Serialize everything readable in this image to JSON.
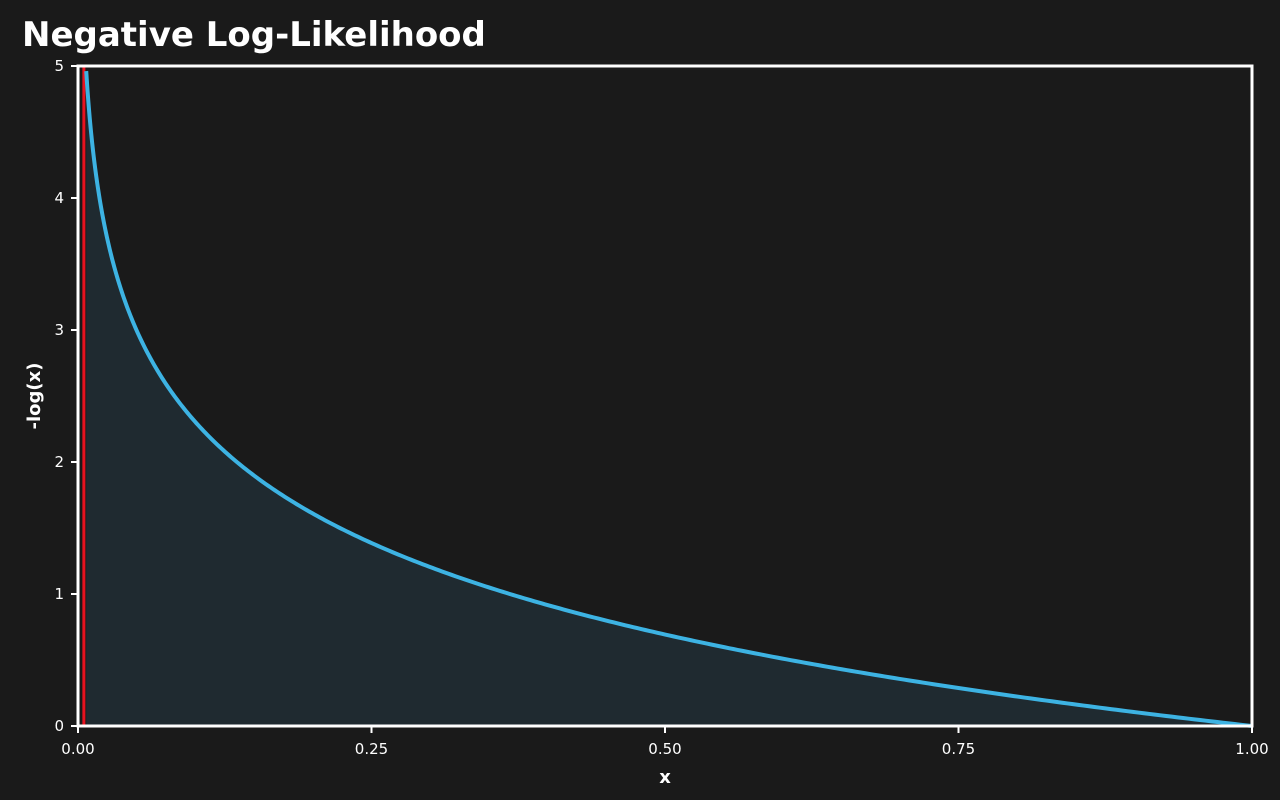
{
  "chart_data": {
    "type": "area",
    "title": "Negative Log-Likelihood",
    "xlabel": "x",
    "ylabel": "-log(x)",
    "function": "-log(x)",
    "x_domain": [
      0.007,
      1.0
    ],
    "xlim": [
      0,
      1
    ],
    "ylim": [
      0,
      5
    ],
    "x_ticks": [
      0,
      0.25,
      0.5,
      0.75,
      1
    ],
    "x_tick_labels": [
      "0.00",
      "0.25",
      "0.50",
      "0.75",
      "1.00"
    ],
    "y_ticks": [
      0,
      1,
      2,
      3,
      4,
      5
    ],
    "y_tick_labels": [
      "0",
      "1",
      "2",
      "3",
      "4",
      "5"
    ],
    "grid": false,
    "vertical_line": {
      "x": 0.005,
      "color": "#e8121f"
    },
    "colors": {
      "background": "#1a1a1a",
      "curve": "#3db3e3",
      "fill": "#1f2a30",
      "axis": "#ffffff",
      "text": "#ffffff"
    }
  }
}
